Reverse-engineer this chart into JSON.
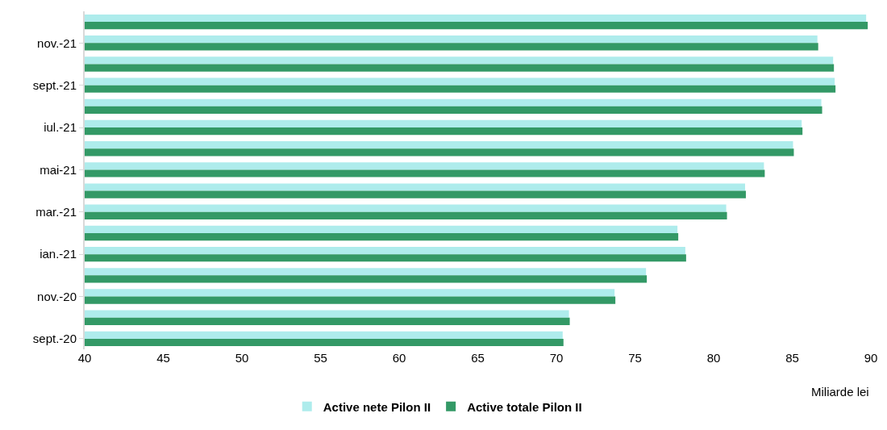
{
  "chart_data": {
    "type": "bar",
    "orientation": "horizontal",
    "xlabel": "Miliarde lei",
    "categories": [
      null,
      "nov.-21",
      null,
      "sept.-21",
      null,
      "iul.-21",
      null,
      "mai-21",
      null,
      "mar.-21",
      null,
      "ian.-21",
      null,
      "nov.-20",
      null,
      "sept.-20"
    ],
    "series": [
      {
        "name": "Active nete Pilon II",
        "color": "#aeecec",
        "values": [
          89.7,
          86.6,
          87.6,
          87.7,
          86.85,
          85.6,
          85.05,
          83.2,
          82.0,
          80.8,
          77.7,
          78.2,
          75.7,
          73.7,
          70.8,
          70.4
        ]
      },
      {
        "name": "Active totale Pilon II",
        "color": "#339966",
        "values": [
          89.8,
          86.65,
          87.65,
          87.75,
          86.9,
          85.65,
          85.1,
          83.25,
          82.05,
          80.85,
          77.75,
          78.25,
          75.75,
          73.75,
          70.85,
          70.45
        ]
      }
    ],
    "xlim": [
      40,
      90
    ],
    "xticks": [
      40,
      45,
      50,
      55,
      60,
      65,
      70,
      75,
      80,
      85,
      90
    ],
    "legend": "bottom"
  }
}
